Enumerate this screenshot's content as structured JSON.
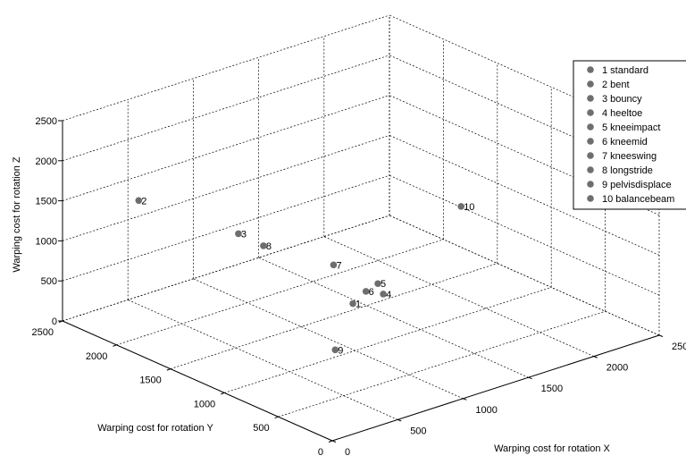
{
  "chart_data": {
    "type": "scatter3d",
    "title": "",
    "xlabel": "Warping cost for rotation X",
    "ylabel": "Warping cost for rotation Y",
    "zlabel": "Warping cost for rotation Z",
    "xlim": [
      0,
      2500
    ],
    "ylim": [
      0,
      2500
    ],
    "zlim": [
      0,
      2500
    ],
    "x_ticks": [
      "0",
      "500",
      "1000",
      "1500",
      "2000",
      "2500"
    ],
    "y_ticks": [
      "0",
      "500",
      "1000",
      "1500",
      "2000",
      "2500"
    ],
    "z_ticks": [
      "0",
      "500",
      "1000",
      "1500",
      "2000",
      "2500"
    ],
    "grid": true,
    "legend_position": "top-right",
    "point_color": "#6e6e6e",
    "points": [
      {
        "label": "1",
        "name": "1 standard",
        "x": 900,
        "y": 900,
        "z": 700
      },
      {
        "label": "2",
        "name": "2 bent",
        "x": 500,
        "y": 2400,
        "z": 1300
      },
      {
        "label": "3",
        "name": "3 bouncy",
        "x": 850,
        "y": 1900,
        "z": 1000
      },
      {
        "label": "4",
        "name": "4 heeltoe",
        "x": 1050,
        "y": 800,
        "z": 800
      },
      {
        "label": "5",
        "name": "5 kneeimpact",
        "x": 1050,
        "y": 850,
        "z": 900
      },
      {
        "label": "6",
        "name": "6 kneemid",
        "x": 1000,
        "y": 900,
        "z": 800
      },
      {
        "label": "7",
        "name": "7 kneeswing",
        "x": 1000,
        "y": 1200,
        "z": 950
      },
      {
        "label": "8",
        "name": "8 longstride",
        "x": 1000,
        "y": 1850,
        "z": 800
      },
      {
        "label": "9",
        "name": "9 pelvisdisplace",
        "x": 600,
        "y": 700,
        "z": 400
      },
      {
        "label": "10",
        "name": "10 balancebeam",
        "x": 1150,
        "y": 200,
        "z": 2200
      }
    ]
  }
}
